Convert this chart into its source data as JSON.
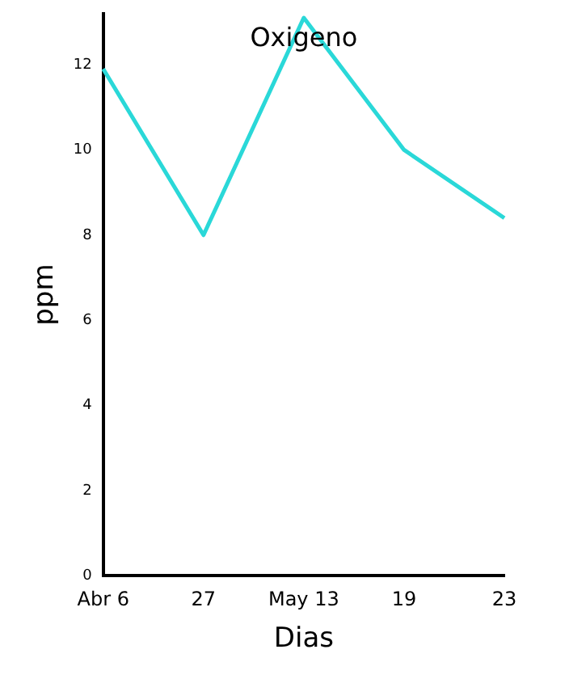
{
  "chart_data": {
    "type": "line",
    "title": "Oxigeno",
    "xlabel": "Dias",
    "ylabel": "ppm",
    "categories": [
      "Abr 6",
      "27",
      "May 13",
      "19",
      "23"
    ],
    "series": [
      {
        "color": "#2ad8d8",
        "values": [
          11.9,
          8.0,
          13.1,
          10.0,
          8.4
        ]
      }
    ],
    "ylim": [
      0,
      13.2
    ],
    "yticks": [
      0,
      2,
      4,
      6,
      8,
      10,
      12
    ],
    "grid": false,
    "legend": false,
    "marker": "none",
    "line_style": "solid"
  }
}
